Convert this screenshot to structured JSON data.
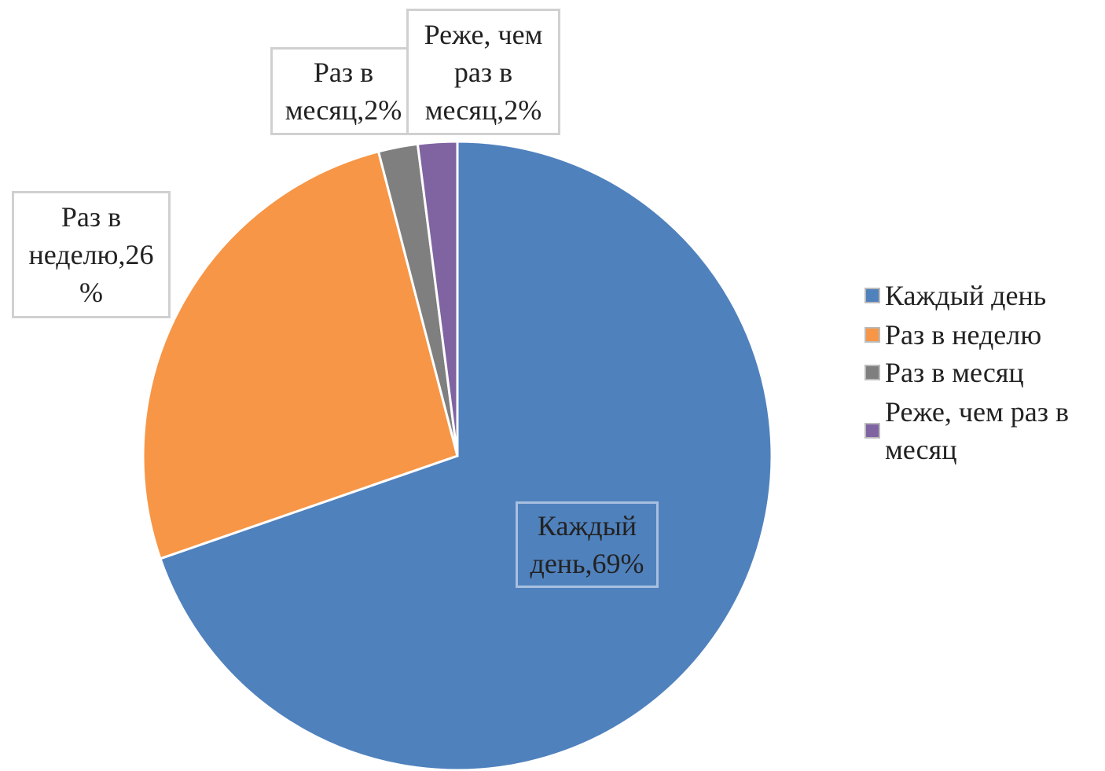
{
  "chart_data": {
    "type": "pie",
    "categories": [
      "Каждый день",
      "Раз в неделю",
      "Раз в месяц",
      "Реже, чем раз в месяц"
    ],
    "values": [
      69,
      26,
      2,
      2
    ],
    "value_labels": [
      "Каждый день,69%",
      "Раз в неделю,26%",
      "Раз в месяц,2%",
      "Реже, чем раз в месяц,2%"
    ],
    "colors": [
      "#4f81bd",
      "#f79646",
      "#7f7f7f",
      "#8064a2"
    ],
    "legend": "right"
  }
}
